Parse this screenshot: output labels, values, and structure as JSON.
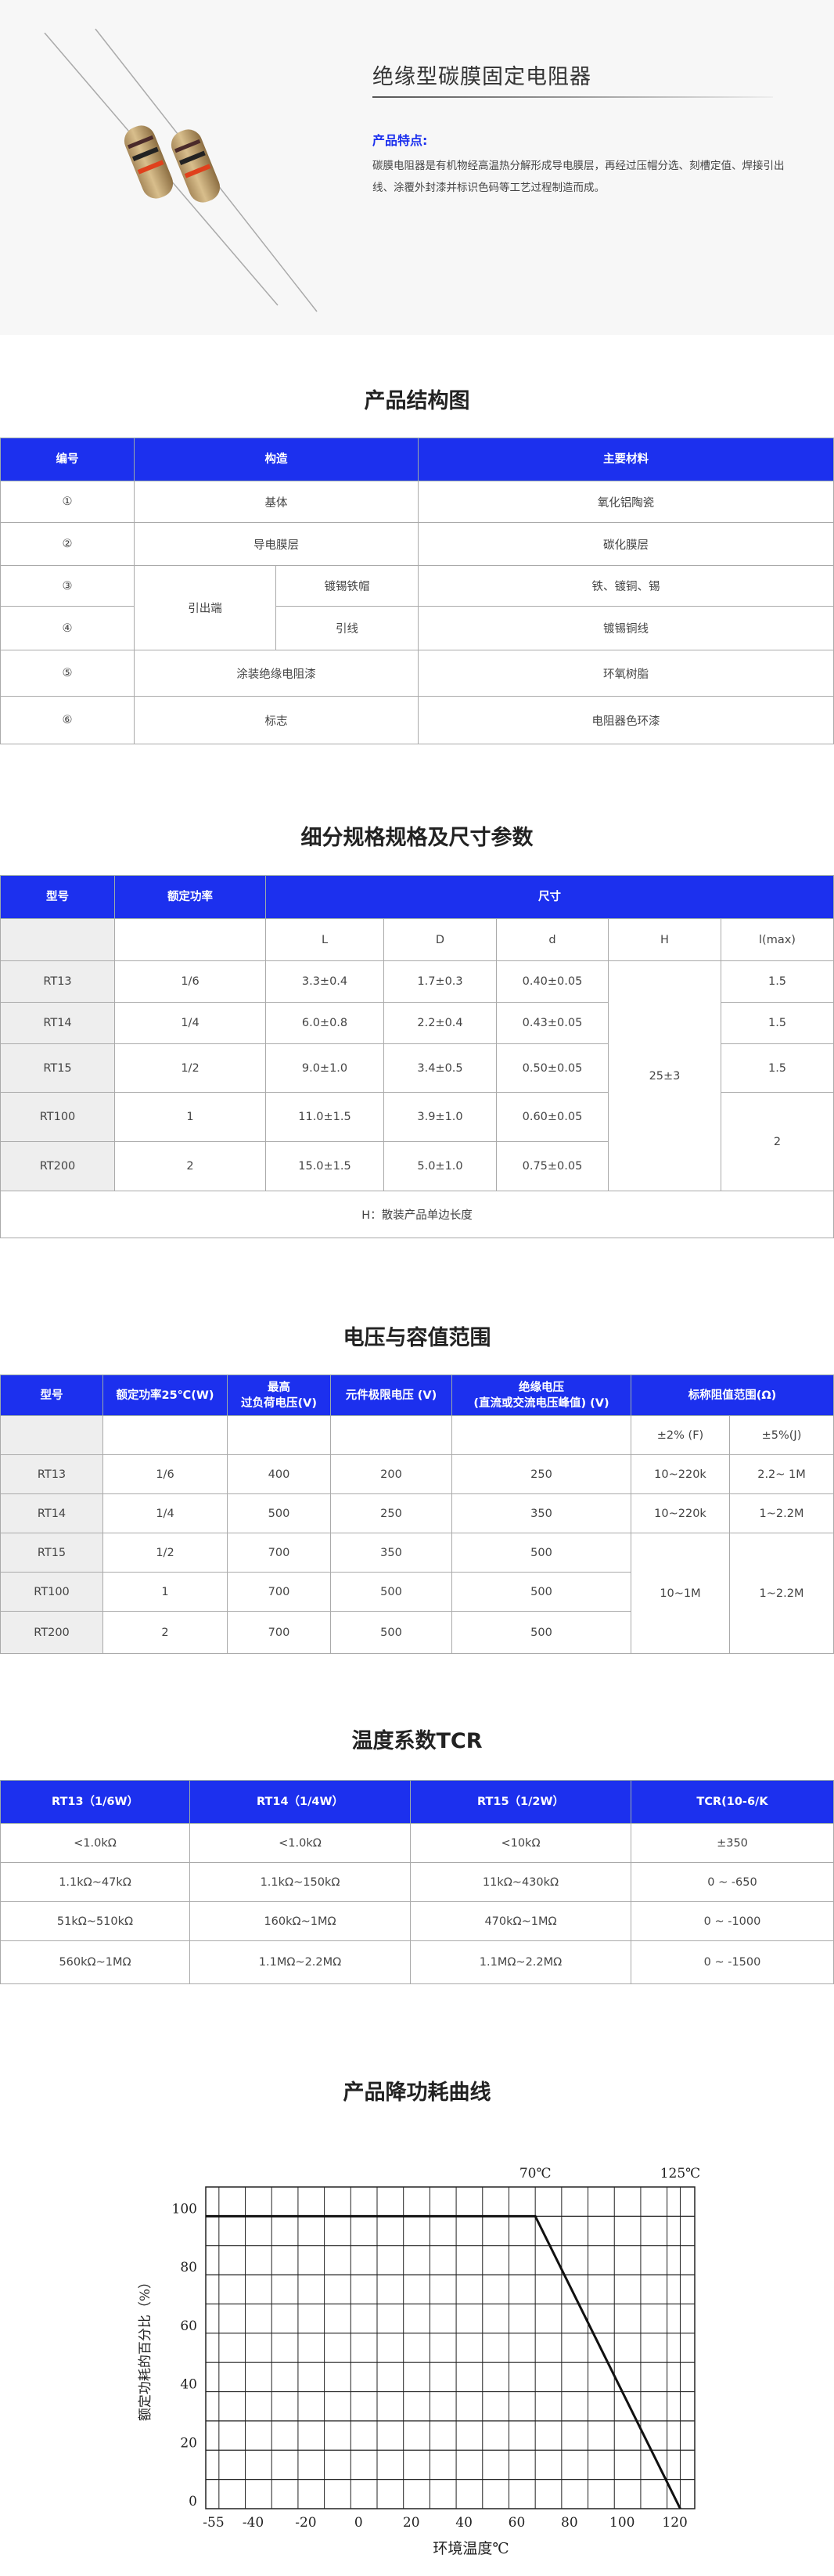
{
  "hero": {
    "title": "绝缘型碳膜固定电阻器",
    "feature_label": "产品特点:",
    "feature_text": "碳膜电阻器是有机物经高温热分解形成导电膜层，再经过压帽分选、刻槽定值、焊接引出线、涂覆外封漆并标识色码等工艺过程制造而成。",
    "accent_color": "#1c30ee"
  },
  "structure": {
    "title": "产品结构图",
    "headers": [
      "编号",
      "构造",
      "主要材料"
    ],
    "rows": [
      {
        "no": "①",
        "part": "基体",
        "material": "氧化铝陶瓷"
      },
      {
        "no": "②",
        "part": "导电膜层",
        "material": "碳化膜层"
      },
      {
        "no": "③",
        "group": "引出端",
        "part": "镀锡铁帽",
        "material": "铁、镀铜、锡"
      },
      {
        "no": "④",
        "part": "引线",
        "material": "镀锡铜线"
      },
      {
        "no": "⑤",
        "part": "涂装绝缘电阻漆",
        "material": "环氧树脂"
      },
      {
        "no": "⑥",
        "part": "标志",
        "material": "电阻器色环漆"
      }
    ]
  },
  "dimensions": {
    "title": "细分规格规格及尺寸参数",
    "headers": [
      "型号",
      "额定功率",
      "尺寸"
    ],
    "subheaders": [
      "L",
      "D",
      "d",
      "H",
      "l(max)"
    ],
    "rows": [
      {
        "model": "RT13",
        "power": "1/6",
        "L": "3.3±0.4",
        "D": "1.7±0.3",
        "d": "0.40±0.05",
        "lmax": "1.5"
      },
      {
        "model": "RT14",
        "power": "1/4",
        "L": "6.0±0.8",
        "D": "2.2±0.4",
        "d": "0.43±0.05",
        "lmax": "1.5"
      },
      {
        "model": "RT15",
        "power": "1/2",
        "L": "9.0±1.0",
        "D": "3.4±0.5",
        "d": "0.50±0.05",
        "lmax": "1.5"
      },
      {
        "model": "RT100",
        "power": "1",
        "L": "11.0±1.5",
        "D": "3.9±1.0",
        "d": "0.60±0.05"
      },
      {
        "model": "RT200",
        "power": "2",
        "L": "15.0±1.5",
        "D": "5.0±1.0",
        "d": "0.75±0.05"
      }
    ],
    "H_value": "25±3",
    "lmax_large": "2",
    "note": "H：散装产品单边长度"
  },
  "voltage": {
    "title": "电压与容值范围",
    "headers": [
      "型号",
      "额定功率25℃(W)",
      "最高",
      "过负荷电压(V)",
      "元件极限电压 (V)",
      "绝缘电压",
      "(直流或交流电压峰值) (V)",
      "标称阻值范围(Ω)"
    ],
    "subheaders": [
      "±2% (F)",
      "±5%(J)"
    ],
    "rows": [
      {
        "model": "RT13",
        "power": "1/6",
        "overload": "400",
        "limit": "200",
        "insulation": "250",
        "f": "10~220k",
        "j": "2.2~ 1M"
      },
      {
        "model": "RT14",
        "power": "1/4",
        "overload": "500",
        "limit": "250",
        "insulation": "350",
        "f": "10~220k",
        "j": "1~2.2M"
      },
      {
        "model": "RT15",
        "power": "1/2",
        "overload": "700",
        "limit": "350",
        "insulation": "500"
      },
      {
        "model": "RT100",
        "power": "1",
        "overload": "700",
        "limit": "500",
        "insulation": "500"
      },
      {
        "model": "RT200",
        "power": "2",
        "overload": "700",
        "limit": "500",
        "insulation": "500"
      }
    ],
    "merged_f": "10~1M",
    "merged_j": "1~2.2M"
  },
  "tcr": {
    "title": "温度系数TCR",
    "headers": [
      "RT13（1/6W）",
      "RT14（1/4W）",
      "RT15（1/2W）",
      "TCR(10-6/K"
    ],
    "rows": [
      [
        "<1.0kΩ",
        "<1.0kΩ",
        "<10kΩ",
        "±350"
      ],
      [
        "1.1kΩ~47kΩ",
        "1.1kΩ~150kΩ",
        "11kΩ~430kΩ",
        "0 ~ -650"
      ],
      [
        "51kΩ~510kΩ",
        "160kΩ~1MΩ",
        "470kΩ~1MΩ",
        "0 ~ -1000"
      ],
      [
        "560kΩ~1MΩ",
        "1.1MΩ~2.2MΩ",
        "1.1MΩ~2.2MΩ",
        "0 ~ -1500"
      ]
    ]
  },
  "chart_data": {
    "type": "line",
    "title": "产品降功耗曲线",
    "xlabel": "环境温度℃",
    "ylabel": "额定功耗的百分比（%）",
    "x": [
      -55,
      70,
      125
    ],
    "y": [
      100,
      100,
      0
    ],
    "xlim": [
      -55,
      130.5
    ],
    "ylim": [
      0,
      110
    ],
    "xticks": [
      -55,
      -40,
      -20,
      0,
      20,
      40,
      60,
      80,
      100,
      120
    ],
    "xtick_labels": [
      "-55",
      "-40",
      "-20",
      "0",
      "20",
      "40",
      "60",
      "80",
      "100",
      "120"
    ],
    "yticks": [
      0,
      20,
      40,
      60,
      80,
      100
    ],
    "ytick_labels": [
      "0",
      "20",
      "40",
      "60",
      "80",
      "100"
    ],
    "annotations": [
      {
        "x": 70,
        "text": "70℃"
      },
      {
        "x": 125,
        "text": "125℃"
      }
    ],
    "grid": true,
    "legend": "none"
  }
}
